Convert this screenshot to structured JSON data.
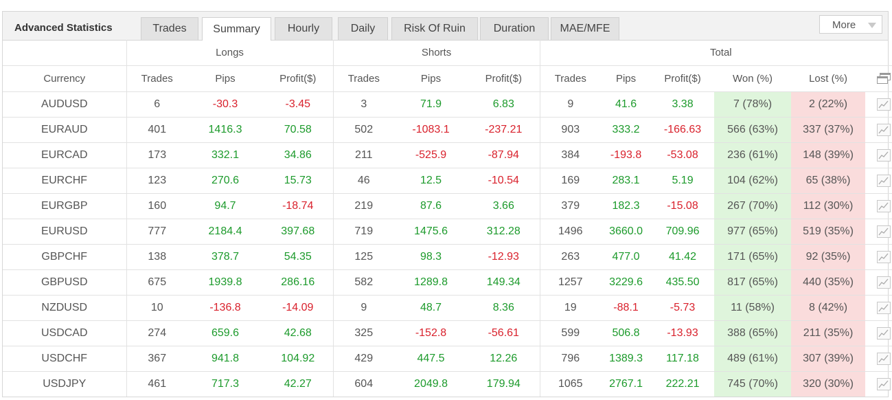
{
  "header": {
    "title": "Advanced Statistics",
    "tabs": [
      {
        "label": "Trades"
      },
      {
        "label": "Summary"
      },
      {
        "label": "Hourly"
      },
      {
        "label": "Daily"
      },
      {
        "label": "Risk Of Ruin"
      },
      {
        "label": "Duration"
      },
      {
        "label": "MAE/MFE"
      }
    ],
    "active_tab": "Summary",
    "more_label": "More"
  },
  "groups": {
    "longs": "Longs",
    "shorts": "Shorts",
    "total": "Total"
  },
  "columns": [
    "Currency",
    "Trades",
    "Pips",
    "Profit($)",
    "Trades",
    "Pips",
    "Profit($)",
    "Trades",
    "Pips",
    "Profit($)",
    "Won (%)",
    "Lost (%)"
  ],
  "colors": {
    "positive": "#1c9a2b",
    "negative": "#d9212c",
    "won_bg": "#dff5dc",
    "lost_bg": "#fadcdc"
  },
  "rows": [
    {
      "currency": "AUDUSD",
      "l_trades": "6",
      "l_pips": "-30.3",
      "l_profit": "-3.45",
      "s_trades": "3",
      "s_pips": "71.9",
      "s_profit": "6.83",
      "t_trades": "9",
      "t_pips": "41.6",
      "t_profit": "3.38",
      "won": "7 (78%)",
      "lost": "2 (22%)"
    },
    {
      "currency": "EURAUD",
      "l_trades": "401",
      "l_pips": "1416.3",
      "l_profit": "70.58",
      "s_trades": "502",
      "s_pips": "-1083.1",
      "s_profit": "-237.21",
      "t_trades": "903",
      "t_pips": "333.2",
      "t_profit": "-166.63",
      "won": "566 (63%)",
      "lost": "337 (37%)"
    },
    {
      "currency": "EURCAD",
      "l_trades": "173",
      "l_pips": "332.1",
      "l_profit": "34.86",
      "s_trades": "211",
      "s_pips": "-525.9",
      "s_profit": "-87.94",
      "t_trades": "384",
      "t_pips": "-193.8",
      "t_profit": "-53.08",
      "won": "236 (61%)",
      "lost": "148 (39%)"
    },
    {
      "currency": "EURCHF",
      "l_trades": "123",
      "l_pips": "270.6",
      "l_profit": "15.73",
      "s_trades": "46",
      "s_pips": "12.5",
      "s_profit": "-10.54",
      "t_trades": "169",
      "t_pips": "283.1",
      "t_profit": "5.19",
      "won": "104 (62%)",
      "lost": "65 (38%)"
    },
    {
      "currency": "EURGBP",
      "l_trades": "160",
      "l_pips": "94.7",
      "l_profit": "-18.74",
      "s_trades": "219",
      "s_pips": "87.6",
      "s_profit": "3.66",
      "t_trades": "379",
      "t_pips": "182.3",
      "t_profit": "-15.08",
      "won": "267 (70%)",
      "lost": "112 (30%)"
    },
    {
      "currency": "EURUSD",
      "l_trades": "777",
      "l_pips": "2184.4",
      "l_profit": "397.68",
      "s_trades": "719",
      "s_pips": "1475.6",
      "s_profit": "312.28",
      "t_trades": "1496",
      "t_pips": "3660.0",
      "t_profit": "709.96",
      "won": "977 (65%)",
      "lost": "519 (35%)"
    },
    {
      "currency": "GBPCHF",
      "l_trades": "138",
      "l_pips": "378.7",
      "l_profit": "54.35",
      "s_trades": "125",
      "s_pips": "98.3",
      "s_profit": "-12.93",
      "t_trades": "263",
      "t_pips": "477.0",
      "t_profit": "41.42",
      "won": "171 (65%)",
      "lost": "92 (35%)"
    },
    {
      "currency": "GBPUSD",
      "l_trades": "675",
      "l_pips": "1939.8",
      "l_profit": "286.16",
      "s_trades": "582",
      "s_pips": "1289.8",
      "s_profit": "149.34",
      "t_trades": "1257",
      "t_pips": "3229.6",
      "t_profit": "435.50",
      "won": "817 (65%)",
      "lost": "440 (35%)"
    },
    {
      "currency": "NZDUSD",
      "l_trades": "10",
      "l_pips": "-136.8",
      "l_profit": "-14.09",
      "s_trades": "9",
      "s_pips": "48.7",
      "s_profit": "8.36",
      "t_trades": "19",
      "t_pips": "-88.1",
      "t_profit": "-5.73",
      "won": "11 (58%)",
      "lost": "8 (42%)"
    },
    {
      "currency": "USDCAD",
      "l_trades": "274",
      "l_pips": "659.6",
      "l_profit": "42.68",
      "s_trades": "325",
      "s_pips": "-152.8",
      "s_profit": "-56.61",
      "t_trades": "599",
      "t_pips": "506.8",
      "t_profit": "-13.93",
      "won": "388 (65%)",
      "lost": "211 (35%)"
    },
    {
      "currency": "USDCHF",
      "l_trades": "367",
      "l_pips": "941.8",
      "l_profit": "104.92",
      "s_trades": "429",
      "s_pips": "447.5",
      "s_profit": "12.26",
      "t_trades": "796",
      "t_pips": "1389.3",
      "t_profit": "117.18",
      "won": "489 (61%)",
      "lost": "307 (39%)"
    },
    {
      "currency": "USDJPY",
      "l_trades": "461",
      "l_pips": "717.3",
      "l_profit": "42.27",
      "s_trades": "604",
      "s_pips": "2049.8",
      "s_profit": "179.94",
      "t_trades": "1065",
      "t_pips": "2767.1",
      "t_profit": "222.21",
      "won": "745 (70%)",
      "lost": "320 (30%)"
    }
  ]
}
